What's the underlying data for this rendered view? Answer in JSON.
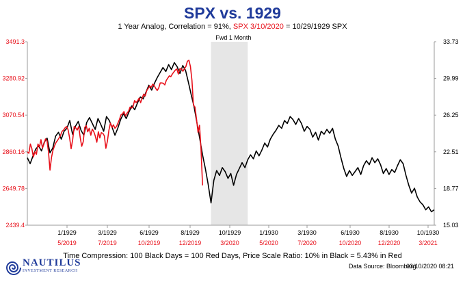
{
  "header": {
    "title": "SPX vs. 1929",
    "subtitle_part1": "1 Year Analog, Correlation = 91%, ",
    "subtitle_red": "SPX 3/10/2020",
    "subtitle_part2": " = 10/29/1929 SPX"
  },
  "footer": {
    "note": "Time Compression: 100 Black Days = 100 Red Days,  Price Scale Ratio: 10% in Black = 5.43% in Red",
    "source": "Data Source: Bloomberg",
    "timestamp": "03/10/2020 08:21"
  },
  "logo": {
    "name": "NAUTILUS",
    "tagline": "INVESTMENT RESEARCH"
  },
  "colors": {
    "title": "#1f3a9a",
    "black_series": "#000000",
    "red_series": "#e8101a",
    "shade": "#e6e6e6"
  },
  "chart_data": {
    "type": "line",
    "annotation": "Fwd 1 Month",
    "left_axis": {
      "ticks": [
        "3491.3",
        "3280.92",
        "3070.54",
        "2860.16",
        "2649.78",
        "2439.4"
      ],
      "range": [
        2439.4,
        3491.3
      ],
      "color": "#e8101a"
    },
    "right_axis": {
      "ticks": [
        "33.73",
        "29.99",
        "26.25",
        "22.51",
        "18.77",
        "15.03"
      ],
      "range": [
        15.03,
        33.73
      ]
    },
    "x_labels_black": [
      "1/1929",
      "3/1929",
      "6/1929",
      "8/1929",
      "10/1929",
      "1/1930",
      "3/1930",
      "6/1930",
      "8/1930",
      "10/1930"
    ],
    "x_labels_red": [
      "5/2019",
      "7/2019",
      "10/2019",
      "12/2019",
      "3/2020",
      "5/2020",
      "7/2020",
      "10/2020",
      "12/2020",
      "3/2021"
    ],
    "series": [
      {
        "axis": "right",
        "color": "#000000",
        "values": [
          21.9,
          21.3,
          22.1,
          22.8,
          23.1,
          22.6,
          23.5,
          23.9,
          22.4,
          22.9,
          24.1,
          24.5,
          23.8,
          24.6,
          24.9,
          25.7,
          24.3,
          25.1,
          25.6,
          24.7,
          24.2,
          25.5,
          26.0,
          25.4,
          24.8,
          25.9,
          25.3,
          24.6,
          26.1,
          25.7,
          25.0,
          24.2,
          24.9,
          25.8,
          26.4,
          25.9,
          26.6,
          27.2,
          26.8,
          27.5,
          28.1,
          27.9,
          28.6,
          29.3,
          28.8,
          29.5,
          30.1,
          30.6,
          31.1,
          30.7,
          31.4,
          30.9,
          31.6,
          31.2,
          30.5,
          31.3,
          30.8,
          29.6,
          28.3,
          27.1,
          25.5,
          23.9,
          22.2,
          20.8,
          19.2,
          17.3,
          19.6,
          20.6,
          20.1,
          20.9,
          20.5,
          19.8,
          20.3,
          19.1,
          20.2,
          20.8,
          21.4,
          20.9,
          21.7,
          22.2,
          21.8,
          22.6,
          22.1,
          22.7,
          23.4,
          23.0,
          23.8,
          24.3,
          24.7,
          25.2,
          24.9,
          25.7,
          25.4,
          26.1,
          25.8,
          25.3,
          25.9,
          25.4,
          24.6,
          25.1,
          24.8,
          24.0,
          24.5,
          23.7,
          24.6,
          24.3,
          24.8,
          24.4,
          24.9,
          23.8,
          23.1,
          21.9,
          20.8,
          20.0,
          20.6,
          20.1,
          20.5,
          20.9,
          20.2,
          21.1,
          21.6,
          21.2,
          21.9,
          21.4,
          21.8,
          21.2,
          20.3,
          20.8,
          20.2,
          20.7,
          20.4,
          21.1,
          21.7,
          21.3,
          20.1,
          19.1,
          18.3,
          18.8,
          17.9,
          17.4,
          17.1,
          16.6,
          16.9,
          16.4,
          16.6
        ]
      },
      {
        "axis": "left",
        "color": "#e8101a",
        "values": [
          2860,
          2852,
          2905,
          2878,
          2830,
          2860,
          2846,
          2905,
          2888,
          2930,
          2882,
          2905,
          2934,
          2925,
          2860,
          2755,
          2828,
          2870,
          2895,
          2914,
          2926,
          2940,
          2955,
          2978,
          2985,
          2998,
          3005,
          2986,
          2940,
          2878,
          2930,
          3005,
          2998,
          2985,
          3005,
          2942,
          2892,
          2918,
          3000,
          3010,
          2975,
          2995,
          2955,
          2990,
          2975,
          2950,
          2915,
          2975,
          2940,
          2970,
          2966,
          2952,
          2880,
          2920,
          2985,
          3025,
          3000,
          3015,
          2995,
          3005,
          3025,
          3046,
          3072,
          3078,
          3091,
          3066,
          3082,
          3093,
          3117,
          3111,
          3120,
          3154,
          3142,
          3153,
          3168,
          3142,
          3168,
          3191,
          3180,
          3210,
          3224,
          3238,
          3230,
          3248,
          3240,
          3224,
          3212,
          3226,
          3255,
          3255,
          3253,
          3244,
          3270,
          3283,
          3296,
          3291,
          3306,
          3318,
          3329,
          3335,
          3306,
          3337,
          3336,
          3322,
          3337,
          3350,
          3380,
          3385,
          3349,
          3270,
          3128,
          3117,
          3050,
          2972,
          3012,
          2872,
          2668
        ]
      }
    ],
    "shaded_region": {
      "black_index_range": [
        65,
        78
      ],
      "label": "Fwd 1 Month"
    }
  }
}
